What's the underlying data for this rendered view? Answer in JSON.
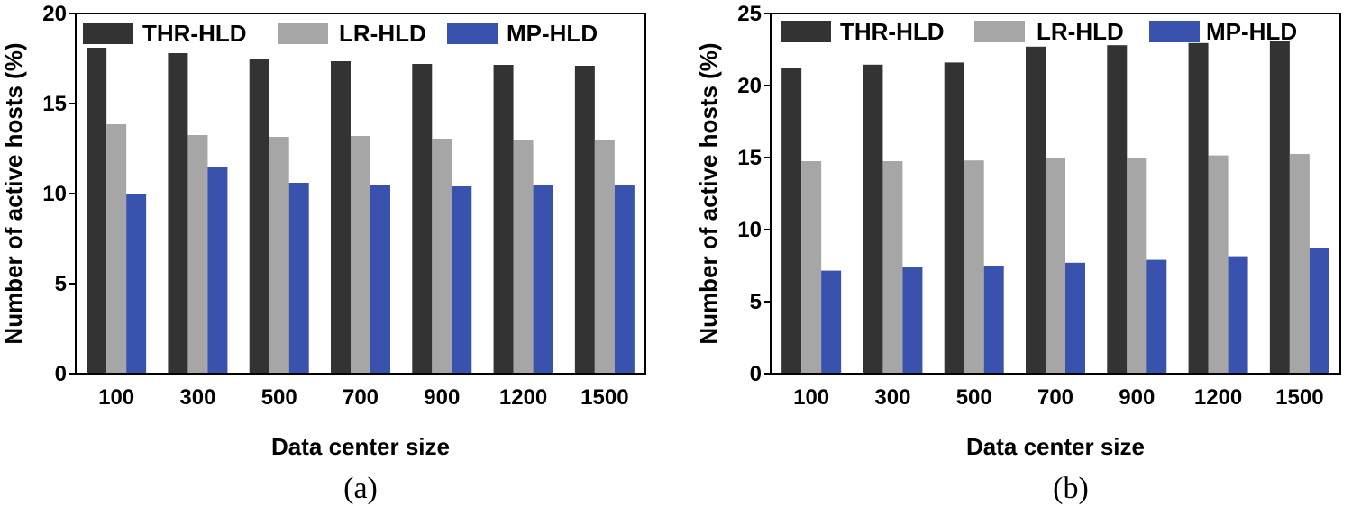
{
  "colors": {
    "thr": "#333333",
    "lr": "#a6a6a6",
    "mp": "#3952ad"
  },
  "chart_data": [
    {
      "type": "bar",
      "caption": "(a)",
      "categories": [
        "100",
        "300",
        "500",
        "700",
        "900",
        "1200",
        "1500"
      ],
      "series": [
        {
          "name": "THR-HLD",
          "values": [
            18.1,
            17.8,
            17.5,
            17.35,
            17.2,
            17.15,
            17.1
          ]
        },
        {
          "name": "LR-HLD",
          "values": [
            13.85,
            13.25,
            13.15,
            13.2,
            13.05,
            12.95,
            13.0
          ]
        },
        {
          "name": "MP-HLD",
          "values": [
            10.0,
            11.5,
            10.6,
            10.5,
            10.4,
            10.45,
            10.5
          ]
        }
      ],
      "xlabel": "Data center size",
      "ylabel": "Number of active hosts (%)",
      "ylim": [
        0,
        20
      ],
      "yticks": [
        "0",
        "5",
        "10",
        "15",
        "20"
      ],
      "legend": "top"
    },
    {
      "type": "bar",
      "caption": "(b)",
      "categories": [
        "100",
        "300",
        "500",
        "700",
        "900",
        "1200",
        "1500"
      ],
      "series": [
        {
          "name": "THR-HLD",
          "values": [
            21.2,
            21.45,
            21.6,
            22.7,
            22.8,
            22.95,
            23.1
          ]
        },
        {
          "name": "LR-HLD",
          "values": [
            14.75,
            14.75,
            14.8,
            14.95,
            14.95,
            15.15,
            15.25
          ]
        },
        {
          "name": "MP-HLD",
          "values": [
            7.15,
            7.4,
            7.5,
            7.7,
            7.9,
            8.15,
            8.75
          ]
        }
      ],
      "xlabel": "Data center size",
      "ylabel": "Number of active hosts (%)",
      "ylim": [
        0,
        25
      ],
      "yticks": [
        "0",
        "5",
        "10",
        "15",
        "20",
        "25"
      ],
      "legend": "top"
    }
  ]
}
